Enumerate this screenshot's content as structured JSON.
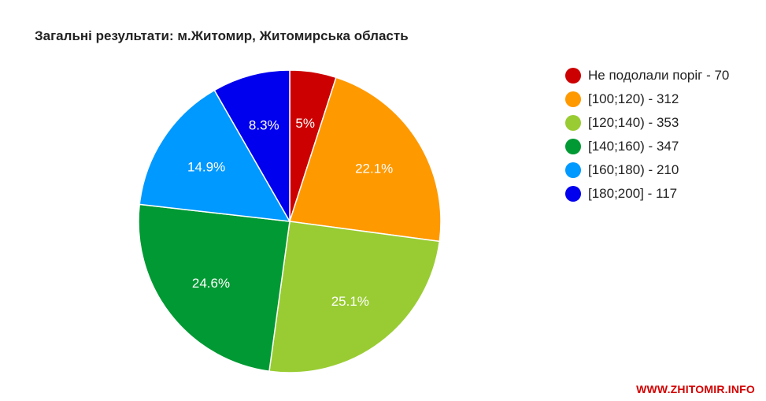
{
  "chart_data": {
    "type": "pie",
    "title": "Загальні результати: м.Житомир, Житомирська область",
    "legend_position": "right",
    "slices": [
      {
        "legend": "Не подолали поріг - 70",
        "value": 70,
        "percent_label": "5%",
        "color": "#cc0000"
      },
      {
        "legend": "[100;120) - 312",
        "value": 312,
        "percent_label": "22.1%",
        "color": "#ff9900"
      },
      {
        "legend": "[120;140) - 353",
        "value": 353,
        "percent_label": "25.1%",
        "color": "#99cc33"
      },
      {
        "legend": "[140;160) - 347",
        "value": 347,
        "percent_label": "24.6%",
        "color": "#009933"
      },
      {
        "legend": "[160;180) - 210",
        "value": 210,
        "percent_label": "14.9%",
        "color": "#0099ff"
      },
      {
        "legend": "[180;200] - 117",
        "value": 117,
        "percent_label": "8.3%",
        "color": "#0000ee"
      }
    ]
  },
  "watermark": "WWW.ZHITOMIR.INFO"
}
